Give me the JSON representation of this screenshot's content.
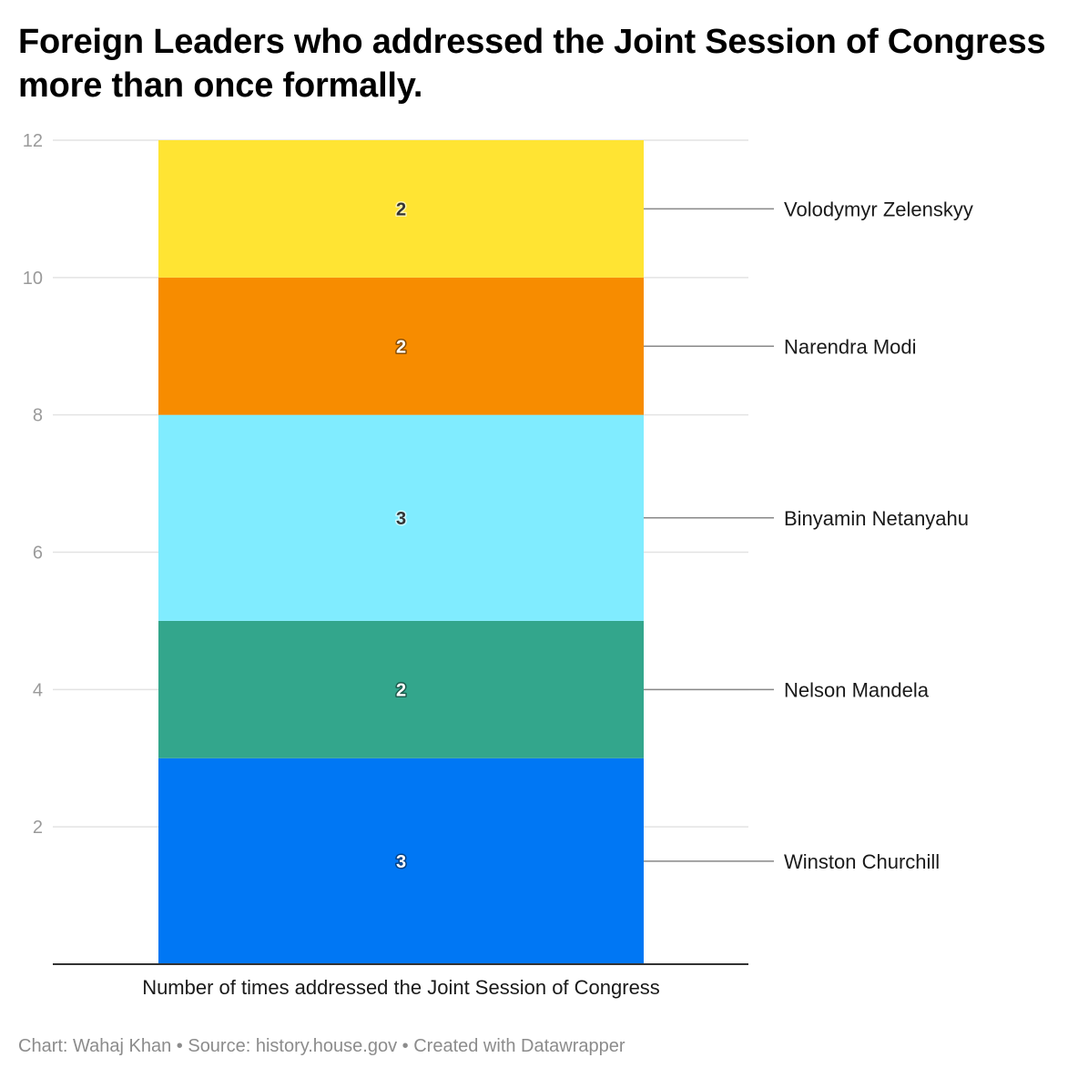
{
  "title": "Foreign Leaders who addressed the Joint Session of Congress more than once formally.",
  "footer": "Chart: Wahaj Khan • Source: history.house.gov • Created with Datawrapper",
  "chart_data": {
    "type": "bar",
    "stacked": true,
    "title": "Foreign Leaders who addressed the Joint Session of Congress more than once formally.",
    "categories": [
      "Number of times addressed the Joint Session of Congress"
    ],
    "xlabel": "Number of times addressed the Joint Session of Congress",
    "ylabel": "",
    "ylim": [
      0,
      12
    ],
    "yticks": [
      2,
      4,
      6,
      8,
      10,
      12
    ],
    "grid": true,
    "legend": "right, direct labels",
    "series": [
      {
        "name": "Winston Churchill",
        "values": [
          3
        ],
        "color": "#0077f4"
      },
      {
        "name": "Nelson Mandela",
        "values": [
          2
        ],
        "color": "#33a68c"
      },
      {
        "name": "Binyamin Netanyahu",
        "values": [
          3
        ],
        "color": "#80ecff"
      },
      {
        "name": "Narendra Modi",
        "values": [
          2
        ],
        "color": "#f78c00"
      },
      {
        "name": "Volodymyr Zelenskyy",
        "values": [
          2
        ],
        "color": "#ffe433"
      }
    ]
  }
}
